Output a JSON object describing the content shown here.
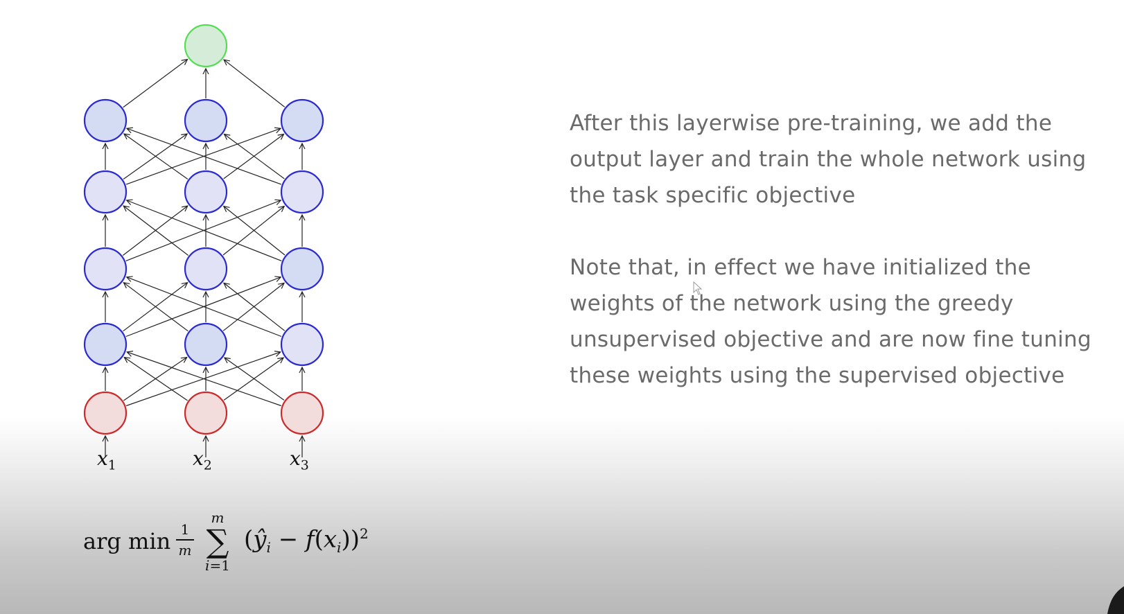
{
  "diagram": {
    "input_labels": [
      {
        "base": "x",
        "sub": "1"
      },
      {
        "base": "x",
        "sub": "2"
      },
      {
        "base": "x",
        "sub": "3"
      }
    ],
    "colors": {
      "output_fill": "#d5edd8",
      "output_stroke": "#55dd55",
      "hidden_fill": "#d4dcf3",
      "hidden_alt_fill": "#e2e2f6",
      "hidden_stroke": "#2a2ad0",
      "input_fill": "#f2dcdc",
      "input_stroke": "#cc2a2a",
      "edge": "#222222"
    }
  },
  "formula": {
    "operator": "arg min",
    "frac_num": "1",
    "frac_den": "m",
    "sum_upper": "m",
    "sum_sigma": "∑",
    "sum_lower_var": "i",
    "sum_lower_rest": "=1",
    "expr_open": "(",
    "expr_yhat": "ŷ",
    "expr_sub_i": "i",
    "expr_minus": " − ",
    "expr_f": "f",
    "expr_x_open": "(",
    "expr_x": "x",
    "expr_sub_i2": "i",
    "expr_close": "))",
    "expr_power": "2"
  },
  "text": {
    "paragraph1": "After this layerwise pre-training, we add the output layer and train the whole network using the task specific objective",
    "paragraph2": "Note that, in effect we have initialized the weights of the network using the greedy unsupervised objective and are now fine tuning these weights using the supervised objective"
  }
}
